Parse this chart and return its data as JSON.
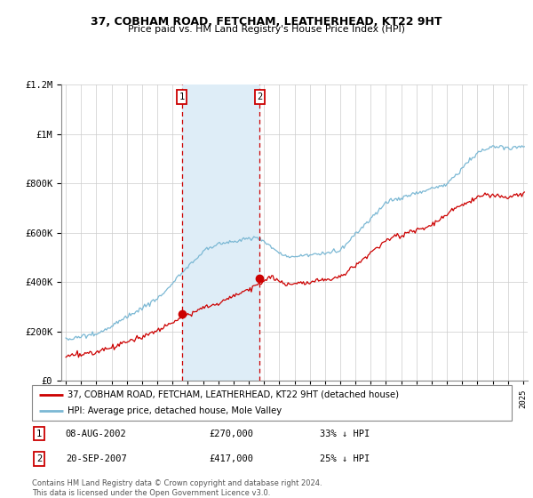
{
  "title": "37, COBHAM ROAD, FETCHAM, LEATHERHEAD, KT22 9HT",
  "subtitle": "Price paid vs. HM Land Registry's House Price Index (HPI)",
  "legend_line1": "37, COBHAM ROAD, FETCHAM, LEATHERHEAD, KT22 9HT (detached house)",
  "legend_line2": "HPI: Average price, detached house, Mole Valley",
  "sale1_date": "08-AUG-2002",
  "sale1_price": "£270,000",
  "sale1_hpi": "33% ↓ HPI",
  "sale1_year": 2002.6,
  "sale1_value": 270000,
  "sale2_date": "20-SEP-2007",
  "sale2_price": "£417,000",
  "sale2_hpi": "25% ↓ HPI",
  "sale2_year": 2007.72,
  "sale2_value": 417000,
  "hpi_color": "#7bb8d4",
  "sale_color": "#cc0000",
  "shade_color": "#deedf7",
  "footer": "Contains HM Land Registry data © Crown copyright and database right 2024.\nThis data is licensed under the Open Government Licence v3.0.",
  "ylim": [
    0,
    1200000
  ],
  "yticks": [
    0,
    200000,
    400000,
    600000,
    800000,
    1000000,
    1200000
  ],
  "xlim_start": 1994.7,
  "xlim_end": 2025.3
}
